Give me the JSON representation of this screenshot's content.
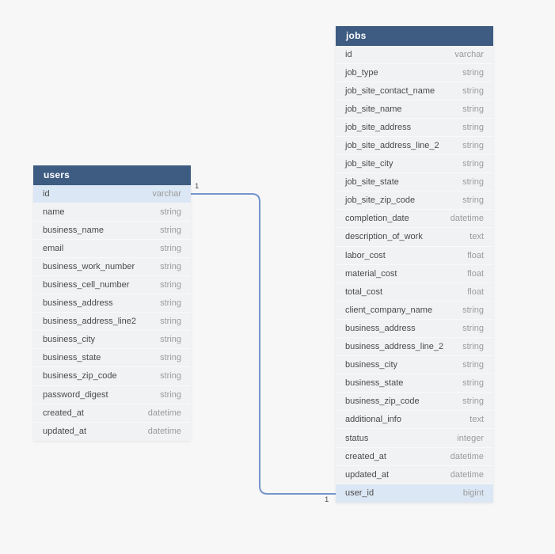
{
  "page": {
    "background": "#f7f7f7"
  },
  "colors": {
    "table_header_bg": "#3e5c82",
    "table_header_text": "#ffffff",
    "row_bg": "#f1f2f4",
    "row_highlight_bg": "#dbe7f4",
    "field_text": "#4a4a4a",
    "type_text": "#9b9b9b",
    "connector": "#7495cc",
    "cardinality_text": "#4a4a4a"
  },
  "tables": [
    {
      "name": "users",
      "columns": [
        {
          "field": "id",
          "type": "varchar",
          "highlight": true
        },
        {
          "field": "name",
          "type": "string",
          "highlight": false
        },
        {
          "field": "business_name",
          "type": "string",
          "highlight": false
        },
        {
          "field": "email",
          "type": "string",
          "highlight": false
        },
        {
          "field": "business_work_number",
          "type": "string",
          "highlight": false
        },
        {
          "field": "business_cell_number",
          "type": "string",
          "highlight": false
        },
        {
          "field": "business_address",
          "type": "string",
          "highlight": false
        },
        {
          "field": "business_address_line2",
          "type": "string",
          "highlight": false
        },
        {
          "field": "business_city",
          "type": "string",
          "highlight": false
        },
        {
          "field": "business_state",
          "type": "string",
          "highlight": false
        },
        {
          "field": "business_zip_code",
          "type": "string",
          "highlight": false
        },
        {
          "field": "password_digest",
          "type": "string",
          "highlight": false
        },
        {
          "field": "created_at",
          "type": "datetime",
          "highlight": false
        },
        {
          "field": "updated_at",
          "type": "datetime",
          "highlight": false
        }
      ]
    },
    {
      "name": "jobs",
      "columns": [
        {
          "field": "id",
          "type": "varchar",
          "highlight": false
        },
        {
          "field": "job_type",
          "type": "string",
          "highlight": false
        },
        {
          "field": "job_site_contact_name",
          "type": "string",
          "highlight": false
        },
        {
          "field": "job_site_name",
          "type": "string",
          "highlight": false
        },
        {
          "field": "job_site_address",
          "type": "string",
          "highlight": false
        },
        {
          "field": "job_site_address_line_2",
          "type": "string",
          "highlight": false
        },
        {
          "field": "job_site_city",
          "type": "string",
          "highlight": false
        },
        {
          "field": "job_site_state",
          "type": "string",
          "highlight": false
        },
        {
          "field": "job_site_zip_code",
          "type": "string",
          "highlight": false
        },
        {
          "field": "completion_date",
          "type": "datetime",
          "highlight": false
        },
        {
          "field": "description_of_work",
          "type": "text",
          "highlight": false
        },
        {
          "field": "labor_cost",
          "type": "float",
          "highlight": false
        },
        {
          "field": "material_cost",
          "type": "float",
          "highlight": false
        },
        {
          "field": "total_cost",
          "type": "float",
          "highlight": false
        },
        {
          "field": "client_company_name",
          "type": "string",
          "highlight": false
        },
        {
          "field": "business_address",
          "type": "string",
          "highlight": false
        },
        {
          "field": "business_address_line_2",
          "type": "string",
          "highlight": false
        },
        {
          "field": "business_city",
          "type": "string",
          "highlight": false
        },
        {
          "field": "business_state",
          "type": "string",
          "highlight": false
        },
        {
          "field": "business_zip_code",
          "type": "string",
          "highlight": false
        },
        {
          "field": "additional_info",
          "type": "text",
          "highlight": false
        },
        {
          "field": "status",
          "type": "integer",
          "highlight": false
        },
        {
          "field": "created_at",
          "type": "datetime",
          "highlight": false
        },
        {
          "field": "updated_at",
          "type": "datetime",
          "highlight": false
        },
        {
          "field": "user_id",
          "type": "bigint",
          "highlight": true
        }
      ]
    }
  ],
  "relationship": {
    "source_table": "users",
    "source_field": "id",
    "target_table": "jobs",
    "target_field": "user_id",
    "source_cardinality": "1",
    "target_cardinality": "1"
  }
}
